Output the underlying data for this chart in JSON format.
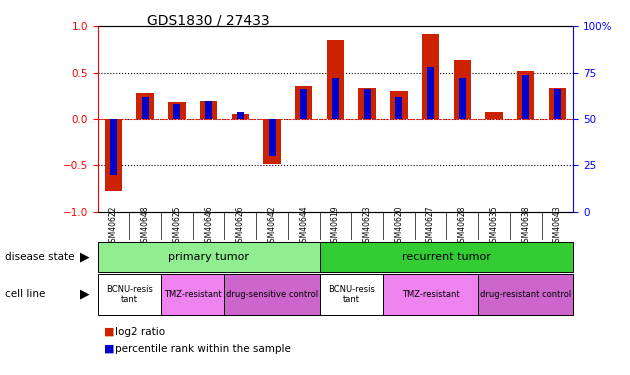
{
  "title": "GDS1830 / 27433",
  "samples": [
    "GSM40622",
    "GSM40648",
    "GSM40625",
    "GSM40646",
    "GSM40626",
    "GSM40642",
    "GSM40644",
    "GSM40619",
    "GSM40623",
    "GSM40620",
    "GSM40627",
    "GSM40628",
    "GSM40635",
    "GSM40638",
    "GSM40643"
  ],
  "log2_ratio": [
    -0.78,
    0.28,
    0.18,
    0.2,
    0.05,
    -0.48,
    0.36,
    0.85,
    0.34,
    0.3,
    0.92,
    0.64,
    0.08,
    0.52,
    0.34
  ],
  "pct_rank": [
    20,
    62,
    58,
    60,
    54,
    30,
    66,
    72,
    66,
    62,
    78,
    72,
    50,
    74,
    66
  ],
  "disease_state": [
    {
      "label": "primary tumor",
      "start": 0,
      "end": 7,
      "color": "#90ee90"
    },
    {
      "label": "recurrent tumor",
      "start": 7,
      "end": 15,
      "color": "#33cc33"
    }
  ],
  "cell_line": [
    {
      "label": "BCNU-resis\ntant",
      "start": 0,
      "end": 2,
      "color": "#ffffff"
    },
    {
      "label": "TMZ-resistant",
      "start": 2,
      "end": 4,
      "color": "#ee82ee"
    },
    {
      "label": "drug-sensitive control",
      "start": 4,
      "end": 7,
      "color": "#cc66cc"
    },
    {
      "label": "BCNU-resis\ntant",
      "start": 7,
      "end": 9,
      "color": "#ffffff"
    },
    {
      "label": "TMZ-resistant",
      "start": 9,
      "end": 12,
      "color": "#ee82ee"
    },
    {
      "label": "drug-resistant control",
      "start": 12,
      "end": 15,
      "color": "#cc66cc"
    }
  ],
  "bar_color_red": "#cc2200",
  "bar_color_blue": "#0000cc",
  "ylim": [
    -1,
    1
  ],
  "yticks_left": [
    -1,
    -0.5,
    0,
    0.5,
    1
  ],
  "yticks_right": [
    0,
    25,
    50,
    75,
    100
  ],
  "xtick_bg": "#cccccc",
  "background_color": "#ffffff"
}
